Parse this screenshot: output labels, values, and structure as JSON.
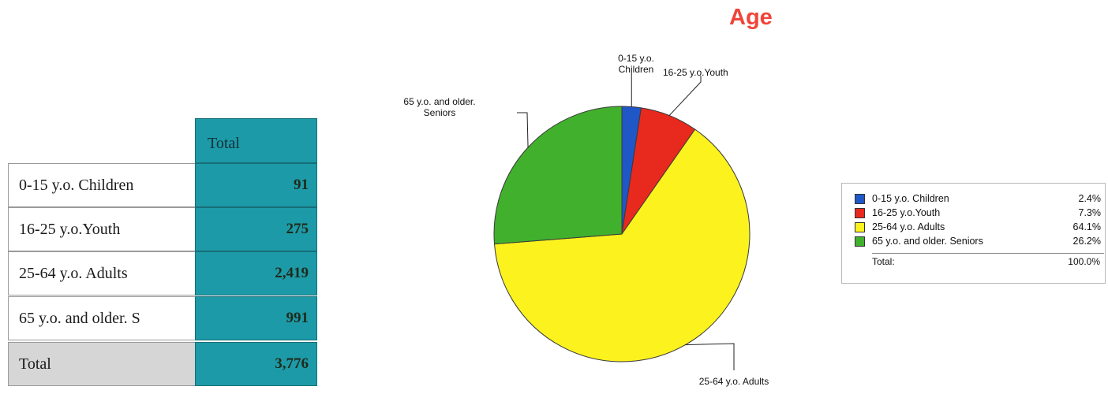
{
  "table": {
    "header": "Total",
    "rows": [
      {
        "label": "0-15 y.o. Children",
        "value": "91"
      },
      {
        "label": "16-25 y.o.Youth",
        "value": "275"
      },
      {
        "label": "25-64 y.o. Adults",
        "value": "2,419"
      },
      {
        "label": "65 y.o. and older.  S",
        "value": "991"
      },
      {
        "label": "Total",
        "value": "3,776"
      }
    ]
  },
  "chart_data": {
    "type": "pie",
    "title": "Age",
    "categories": [
      "0-15 y.o. Children",
      "16-25 y.o.Youth",
      "25-64 y.o. Adults",
      "65 y.o. and older.  Seniors"
    ],
    "values": [
      91,
      275,
      2419,
      991
    ],
    "percentages": [
      "2.4%",
      "7.3%",
      "64.1%",
      "26.2%"
    ],
    "colors": [
      "#1f57c7",
      "#e8291d",
      "#fbf21e",
      "#41b02c"
    ],
    "slice_labels": [
      "0-15 y.o. Children",
      "16-25 y.o.Youth",
      "25-64 y.o. Adults",
      "65 y.o. and older. Seniors"
    ],
    "legend": {
      "position": "right",
      "total_label": "Total:",
      "total_value": "100.0%"
    }
  }
}
